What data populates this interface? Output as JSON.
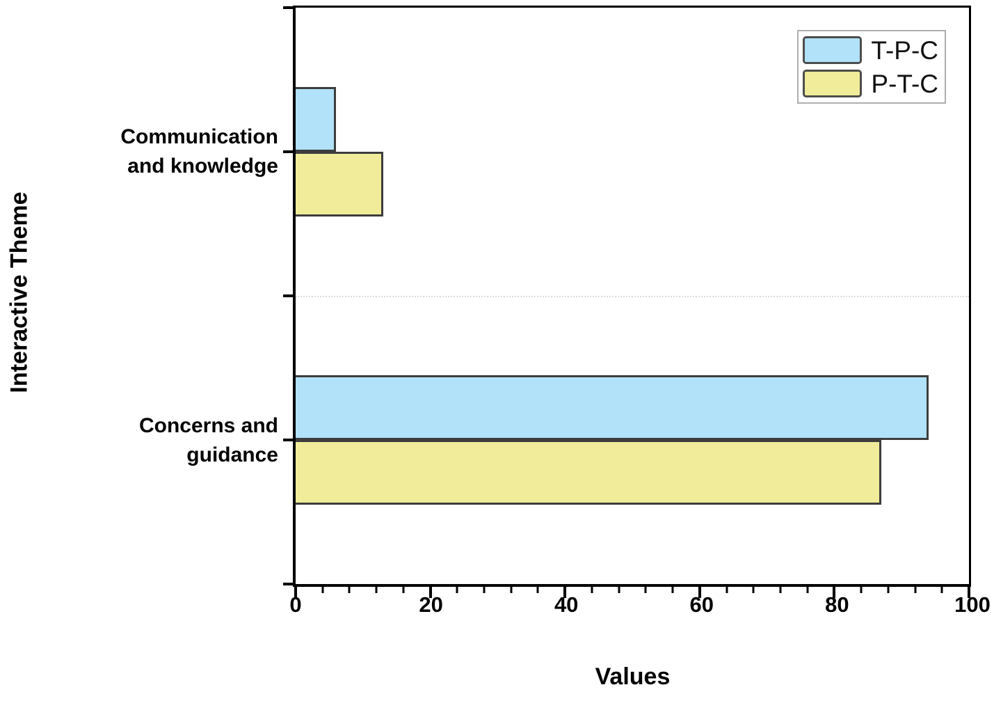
{
  "chart_data": {
    "type": "bar",
    "orientation": "horizontal",
    "title": "",
    "xlabel": "Values",
    "ylabel": "Interactive Theme",
    "xlim": [
      0,
      100
    ],
    "xticks": [
      0,
      20,
      40,
      60,
      80,
      100
    ],
    "xtick_labels": [
      "0",
      "20",
      "40",
      "60",
      "80",
      "100"
    ],
    "minor_tick_step": 4,
    "grid": "off",
    "legend_position": "top-right-inside",
    "categories": [
      "Communication and knowledge",
      "Concerns and guidance"
    ],
    "category_label_lines": [
      [
        "Communication",
        "and knowledge"
      ],
      [
        "Concerns and",
        "guidance"
      ]
    ],
    "series": [
      {
        "name": "T-P-C",
        "color": "#b1e2fa",
        "values": [
          6,
          94
        ]
      },
      {
        "name": "P-T-C",
        "color": "#f0ec99",
        "values": [
          13,
          87
        ]
      }
    ]
  },
  "colors": {
    "bar_border": "#3d3d3d",
    "axis": "#000000",
    "legend_border": "#aeaeae",
    "divider": "#dcdcdc"
  }
}
